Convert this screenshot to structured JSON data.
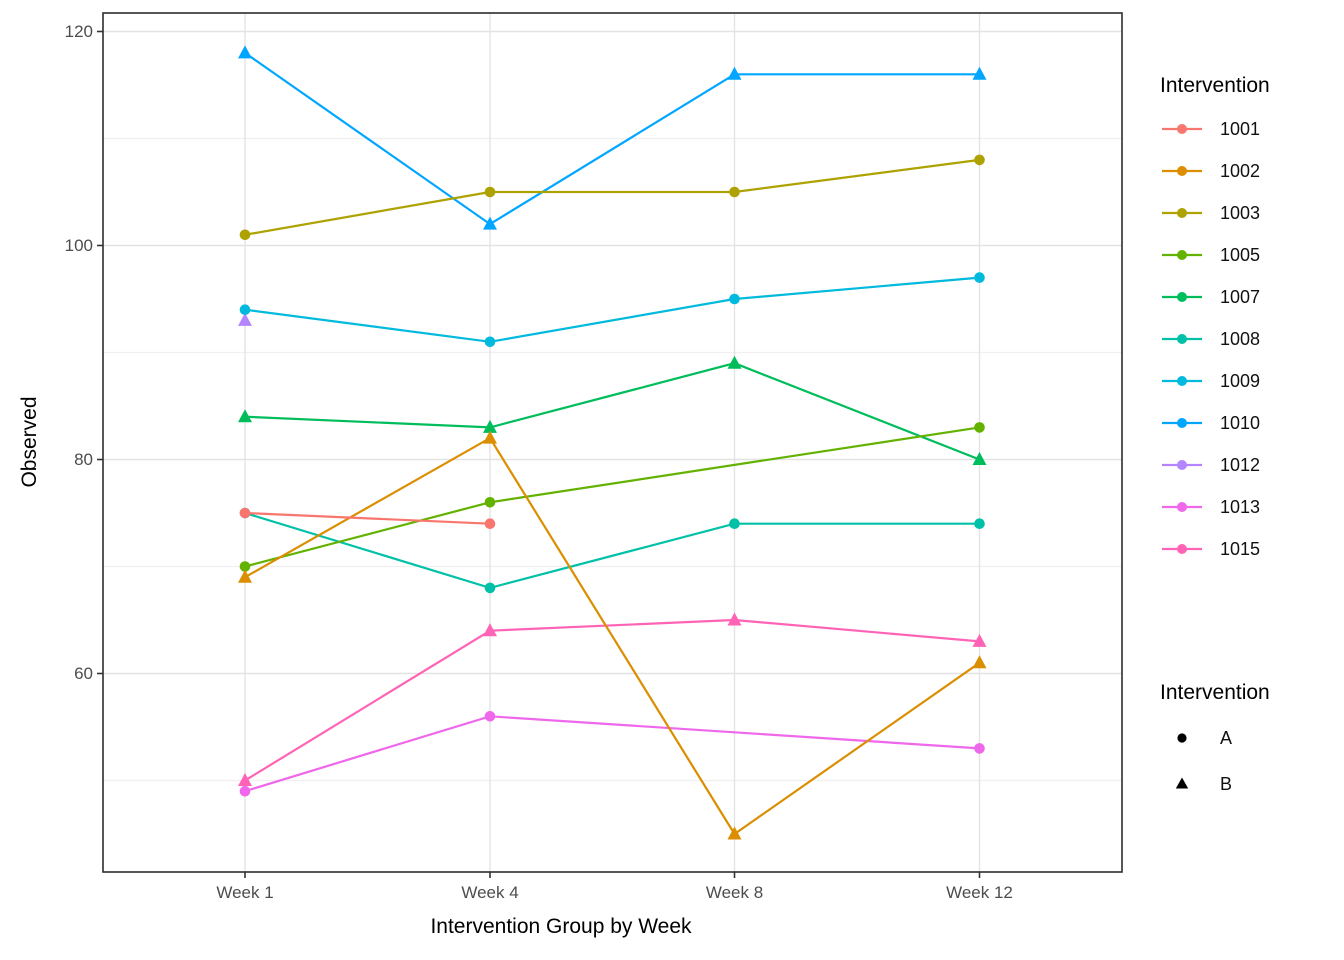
{
  "chart_data": {
    "type": "line",
    "title": "",
    "xlabel": "Intervention Group by Week",
    "ylabel": "Observed",
    "x_categories": [
      "Week 1",
      "Week 4",
      "Week 8",
      "Week 12"
    ],
    "y_axis": {
      "tick_labels": [
        "120",
        "100",
        "80",
        "60"
      ],
      "tick_values": [
        120,
        100,
        80,
        60
      ],
      "major_gridlines": [
        60,
        80,
        100,
        120
      ],
      "minor_gridlines": [
        50,
        70,
        90,
        110
      ],
      "ylim": [
        41,
        122
      ]
    },
    "grid": true,
    "legend_position": "right",
    "color_legend": {
      "title": "Intervention"
    },
    "shape_legend": {
      "title": "Intervention",
      "items": [
        {
          "label": "A",
          "shape": "circle"
        },
        {
          "label": "B",
          "shape": "triangle"
        }
      ]
    },
    "series": [
      {
        "name": "1001",
        "group": "A",
        "shape": "circle",
        "color": "#F8766D",
        "values": [
          75,
          74,
          null,
          null
        ]
      },
      {
        "name": "1002",
        "group": "B",
        "shape": "triangle",
        "color": "#DB8E00",
        "values": [
          69,
          82,
          45,
          61
        ]
      },
      {
        "name": "1003",
        "group": "A",
        "shape": "circle",
        "color": "#AEA200",
        "values": [
          101,
          105,
          105,
          108
        ]
      },
      {
        "name": "1005",
        "group": "A",
        "shape": "circle",
        "color": "#64B200",
        "values": [
          70,
          76,
          null,
          83
        ]
      },
      {
        "name": "1007",
        "group": "B",
        "shape": "triangle",
        "color": "#00BD5C",
        "values": [
          84,
          83,
          89,
          80
        ]
      },
      {
        "name": "1008",
        "group": "A",
        "shape": "circle",
        "color": "#00C1A7",
        "values": [
          75,
          68,
          74,
          74
        ]
      },
      {
        "name": "1009",
        "group": "A",
        "shape": "circle",
        "color": "#00BADE",
        "values": [
          94,
          91,
          95,
          97
        ]
      },
      {
        "name": "1010",
        "group": "B",
        "shape": "triangle",
        "color": "#00A6FF",
        "values": [
          118,
          102,
          116,
          116
        ]
      },
      {
        "name": "1012",
        "group": "B",
        "shape": "triangle",
        "color": "#B385FF",
        "values": [
          93,
          null,
          null,
          null
        ]
      },
      {
        "name": "1013",
        "group": "A",
        "shape": "circle",
        "color": "#EF67EB",
        "values": [
          49,
          56,
          null,
          53
        ]
      },
      {
        "name": "1015",
        "group": "B",
        "shape": "triangle",
        "color": "#FF63B6",
        "values": [
          50,
          64,
          65,
          63
        ]
      }
    ],
    "style": {
      "panel_border_color": "#2d2d2d",
      "major_grid_color": "#e3e3e3",
      "minor_grid_color": "#f0f0f0",
      "tick_color": "#333333"
    }
  }
}
